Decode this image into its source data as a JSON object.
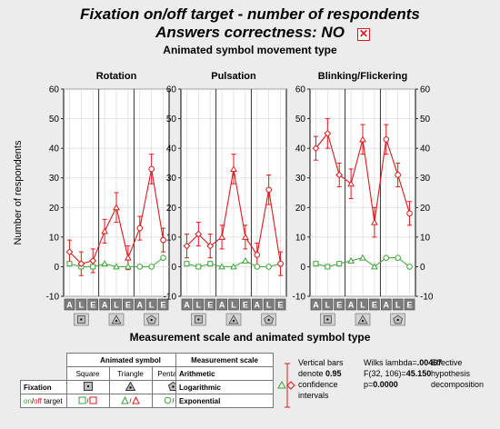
{
  "title": {
    "line1": "Fixation on/off target -  number of respondents",
    "line2": "Answers correctness: NO",
    "group_title": "Animated symbol movement type",
    "bottom_title": "Measurement scale and animated symbol type"
  },
  "colors": {
    "red": "#e2161b",
    "green": "#3aa335",
    "grid": "#d9d9d9",
    "panel": "#ffffff"
  },
  "chart_data": {
    "type": "line",
    "ylabel": "Number of respondents",
    "ylim": [
      -10,
      60
    ],
    "yticks": [
      -10,
      0,
      10,
      20,
      30,
      40,
      50,
      60
    ],
    "xticks": [
      "A",
      "L",
      "E",
      "A",
      "L",
      "E",
      "A",
      "L",
      "E"
    ],
    "symbol_groups": [
      "Square",
      "Triangle",
      "Pentagon"
    ],
    "panels": [
      {
        "title": "Rotation",
        "on_target": {
          "values": [
            5,
            1,
            2,
            12,
            20,
            3,
            13,
            33,
            9
          ],
          "ci": [
            [
              1,
              9
            ],
            [
              -3,
              5
            ],
            [
              -2,
              6
            ],
            [
              8,
              16
            ],
            [
              15,
              25
            ],
            [
              -1,
              7
            ],
            [
              9,
              17
            ],
            [
              28,
              38
            ],
            [
              5,
              13
            ]
          ]
        },
        "off_target": {
          "values": [
            1,
            0,
            0,
            1,
            0,
            0,
            0,
            0,
            3
          ]
        }
      },
      {
        "title": "Pulsation",
        "on_target": {
          "values": [
            7,
            11,
            7,
            10,
            33,
            10,
            4,
            26,
            1
          ],
          "ci": [
            [
              3,
              11
            ],
            [
              7,
              15
            ],
            [
              3,
              11
            ],
            [
              6,
              14
            ],
            [
              28,
              38
            ],
            [
              6,
              14
            ],
            [
              0,
              8
            ],
            [
              21,
              31
            ],
            [
              -3,
              5
            ]
          ]
        },
        "off_target": {
          "values": [
            1,
            0,
            1,
            0,
            0,
            2,
            0,
            0,
            1
          ]
        }
      },
      {
        "title": "Blinking/Flickering",
        "on_target": {
          "values": [
            40,
            45,
            31,
            28,
            43,
            15,
            43,
            31,
            18
          ],
          "ci": [
            [
              36,
              44
            ],
            [
              40,
              50
            ],
            [
              27,
              35
            ],
            [
              23,
              33
            ],
            [
              38,
              48
            ],
            [
              10,
              20
            ],
            [
              38,
              48
            ],
            [
              27,
              35
            ],
            [
              14,
              22
            ]
          ]
        },
        "off_target": {
          "values": [
            1,
            0,
            1,
            2,
            3,
            0,
            3,
            3,
            0
          ]
        }
      }
    ]
  },
  "legend": {
    "symbol_table": {
      "header": "Animated symbol",
      "columns": [
        "Square",
        "Triangle",
        "Pentagon"
      ],
      "row1_label": "Fixation",
      "row2_on": "on",
      "row2_off": "off",
      "row2_target": " target"
    },
    "scale_table": {
      "header": "Measurement scale",
      "items": [
        "Arithmetic",
        "Logarithmic",
        "Exponential"
      ]
    },
    "bars_note": {
      "line1": "Vertical bars",
      "line2_prefix": "denote ",
      "line2_value": "0.95",
      "line3": "confidence",
      "line4": "intervals"
    },
    "stats": {
      "line1_prefix": "Wilks lambda=",
      "line1_value": ".00467",
      "line2_prefix": "F(32, 106)=",
      "line2_value": "45.150",
      "line3_prefix": "p=",
      "line3_value": "0.0000"
    },
    "effect_note": {
      "line1": "Effective",
      "line2": "hypothesis",
      "line3": "decomposition"
    }
  }
}
